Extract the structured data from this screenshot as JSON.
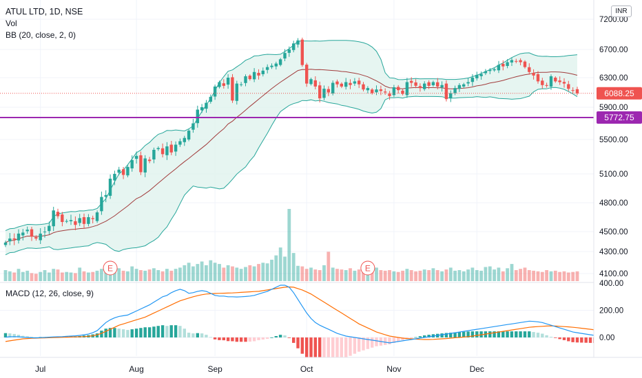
{
  "legend": {
    "symbol": "ATUL LTD, 1D, NSE",
    "vol": "Vol",
    "bb": "BB (20, close, 2, 0)",
    "macd": "MACD (12, 26, close, 9)"
  },
  "currency": "INR",
  "colors": {
    "up": "#26a69a",
    "down": "#ef5350",
    "bb_fill": "#e0f2ee",
    "bb_band": "#26a69a",
    "bb_basis": "#a13b3b",
    "macd_line": "#2196f3",
    "signal_line": "#ff6d00",
    "level_line": "#9c27b0",
    "last_price": "#ef5350"
  },
  "chart_data": {
    "type": "candlestick",
    "price_ylim": [
      4050,
      7300
    ],
    "price_ticks": [
      "4100.00",
      "4300.00",
      "4500.00",
      "4800.00",
      "5100.00",
      "5500.00",
      "5900.00",
      "6300.00",
      "6700.00",
      "7200.00"
    ],
    "x_ticks": [
      "Jul",
      "Aug",
      "Sep",
      "Oct",
      "Nov",
      "Dec"
    ],
    "x_tick_index": [
      8,
      30,
      48,
      69,
      89,
      108
    ],
    "last_price": {
      "value": 6088.25,
      "label": "6088.25"
    },
    "level_line": {
      "value": 5772.75,
      "label": "5772.75"
    },
    "earnings_markers": {
      "label": "E",
      "index": [
        24,
        83
      ]
    },
    "close": [
      4390,
      4430,
      4420,
      4480,
      4490,
      4520,
      4450,
      4430,
      4480,
      4500,
      4560,
      4720,
      4660,
      4600,
      4610,
      4620,
      4570,
      4640,
      4580,
      4650,
      4630,
      4700,
      4860,
      4880,
      5050,
      5100,
      5150,
      5090,
      5180,
      5260,
      5310,
      5120,
      5280,
      5250,
      5380,
      5400,
      5330,
      5420,
      5350,
      5440,
      5480,
      5520,
      5610,
      5700,
      5870,
      5900,
      5960,
      6040,
      6180,
      6240,
      6190,
      6300,
      5990,
      6220,
      6210,
      6320,
      6280,
      6380,
      6330,
      6400,
      6450,
      6470,
      6500,
      6560,
      6650,
      6700,
      6800,
      6850,
      6480,
      6220,
      6280,
      6180,
      6020,
      6150,
      6100,
      6230,
      6210,
      6180,
      6240,
      6200,
      6250,
      6210,
      6140,
      6160,
      6090,
      6140,
      6120,
      6100,
      6050,
      6170,
      6130,
      6080,
      6240,
      6230,
      6190,
      6160,
      6220,
      6190,
      6240,
      6180,
      6200,
      6010,
      6090,
      6160,
      6200,
      6210,
      6240,
      6300,
      6340,
      6350,
      6390,
      6410,
      6420,
      6480,
      6460,
      6520,
      6550,
      6530,
      6520,
      6450,
      6380,
      6330,
      6250,
      6200,
      6190,
      6320,
      6250,
      6240,
      6220,
      6150,
      6130,
      6088
    ],
    "volume": [
      18,
      16,
      14,
      20,
      15,
      17,
      13,
      12,
      15,
      18,
      14,
      20,
      19,
      14,
      15,
      14,
      13,
      22,
      16,
      14,
      15,
      17,
      20,
      22,
      18,
      19,
      21,
      17,
      16,
      24,
      20,
      18,
      17,
      19,
      21,
      18,
      16,
      20,
      17,
      20,
      22,
      26,
      30,
      24,
      28,
      32,
      26,
      34,
      30,
      28,
      22,
      26,
      24,
      22,
      20,
      23,
      26,
      24,
      28,
      30,
      29,
      35,
      42,
      55,
      40,
      118,
      46,
      25,
      24,
      20,
      22,
      19,
      18,
      26,
      48,
      22,
      20,
      19,
      18,
      21,
      17,
      19,
      18,
      20,
      16,
      22,
      18,
      17,
      18,
      16,
      15,
      17,
      20,
      18,
      16,
      17,
      19,
      18,
      21,
      18,
      16,
      19,
      22,
      17,
      18,
      16,
      19,
      22,
      18,
      17,
      23,
      24,
      19,
      22,
      16,
      21,
      28,
      18,
      20,
      22,
      18,
      17,
      16,
      15,
      18,
      16,
      17,
      15,
      16,
      14,
      15,
      16
    ],
    "macd": [
      2,
      5,
      6,
      5,
      2,
      0,
      -2,
      -3,
      -1,
      0,
      2,
      4,
      5,
      6,
      8,
      10,
      12,
      15,
      20,
      25,
      35,
      50,
      80,
      110,
      130,
      145,
      155,
      160,
      165,
      180,
      195,
      210,
      225,
      240,
      260,
      280,
      300,
      310,
      330,
      345,
      355,
      345,
      325,
      330,
      340,
      345,
      340,
      325,
      310,
      305,
      305,
      300,
      300,
      298,
      300,
      302,
      305,
      310,
      320,
      330,
      340,
      355,
      370,
      385,
      385,
      370,
      330,
      280,
      230,
      180,
      140,
      110,
      90,
      75,
      60,
      45,
      30,
      20,
      10,
      5,
      0,
      -5,
      -10,
      -15,
      -20,
      -25,
      -30,
      -35,
      -40,
      -35,
      -30,
      -25,
      -20,
      -15,
      -10,
      -5,
      0,
      5,
      10,
      15,
      20,
      25,
      30,
      35,
      40,
      45,
      50,
      55,
      60,
      65,
      70,
      75,
      80,
      85,
      90,
      95,
      100,
      105,
      110,
      115,
      120,
      118,
      115,
      110,
      100,
      90,
      80,
      70,
      60,
      50,
      40,
      35,
      30,
      25,
      20,
      15,
      10,
      5
    ],
    "signal": [
      -30,
      -25,
      -20,
      -15,
      -10,
      -8,
      -6,
      -5,
      -4,
      -3,
      -2,
      -1,
      0,
      1,
      2,
      3,
      4,
      5,
      6,
      8,
      12,
      20,
      30,
      45,
      60,
      75,
      90,
      100,
      110,
      120,
      130,
      140,
      150,
      165,
      180,
      195,
      210,
      225,
      240,
      255,
      270,
      280,
      290,
      300,
      308,
      315,
      320,
      322,
      324,
      325,
      326,
      327,
      328,
      330,
      332,
      334,
      336,
      338,
      340,
      345,
      350,
      355,
      360,
      365,
      370,
      372,
      370,
      360,
      350,
      335,
      320,
      300,
      280,
      260,
      240,
      220,
      200,
      180,
      160,
      140,
      120,
      100,
      85,
      70,
      55,
      40,
      30,
      20,
      10,
      5,
      0,
      -5,
      -8,
      -10,
      -12,
      -14,
      -15,
      -15,
      -14,
      -12,
      -10,
      -8,
      -5,
      -2,
      0,
      3,
      6,
      10,
      15,
      20,
      25,
      30,
      35,
      40,
      45,
      50,
      55,
      60,
      65,
      70,
      75,
      78,
      80,
      82,
      84,
      85,
      84,
      82,
      80,
      78,
      75,
      72,
      68,
      64,
      60,
      56
    ]
  },
  "macd_ticks": [
    "400.00",
    "200.00",
    "0.00"
  ],
  "macd_ylim": [
    -120,
    420
  ]
}
